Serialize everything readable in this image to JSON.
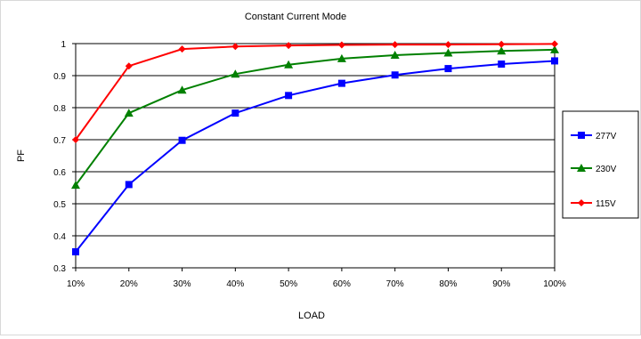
{
  "chart_data": {
    "type": "line",
    "title": "Constant Current Mode",
    "xlabel": "LOAD",
    "ylabel": "PF",
    "categories": [
      "10%",
      "20%",
      "30%",
      "40%",
      "50%",
      "60%",
      "70%",
      "80%",
      "90%",
      "100%"
    ],
    "yticks": [
      "0.3",
      "0.4",
      "0.5",
      "0.6",
      "0.7",
      "0.8",
      "0.9",
      "1"
    ],
    "ylim": [
      0.3,
      1.0
    ],
    "grid": true,
    "legend_position": "right",
    "series": [
      {
        "name": "277V",
        "color": "#0000ff",
        "marker": "square",
        "values": [
          0.35,
          0.56,
          0.698,
          0.783,
          0.838,
          0.876,
          0.902,
          0.922,
          0.936,
          0.946
        ]
      },
      {
        "name": "230V",
        "color": "#008000",
        "marker": "triangle",
        "values": [
          0.558,
          0.783,
          0.855,
          0.905,
          0.934,
          0.953,
          0.964,
          0.971,
          0.977,
          0.981
        ]
      },
      {
        "name": "115V",
        "color": "#ff0000",
        "marker": "diamond",
        "values": [
          0.7,
          0.93,
          0.983,
          0.991,
          0.994,
          0.996,
          0.997,
          0.997,
          0.998,
          0.999
        ]
      }
    ]
  }
}
